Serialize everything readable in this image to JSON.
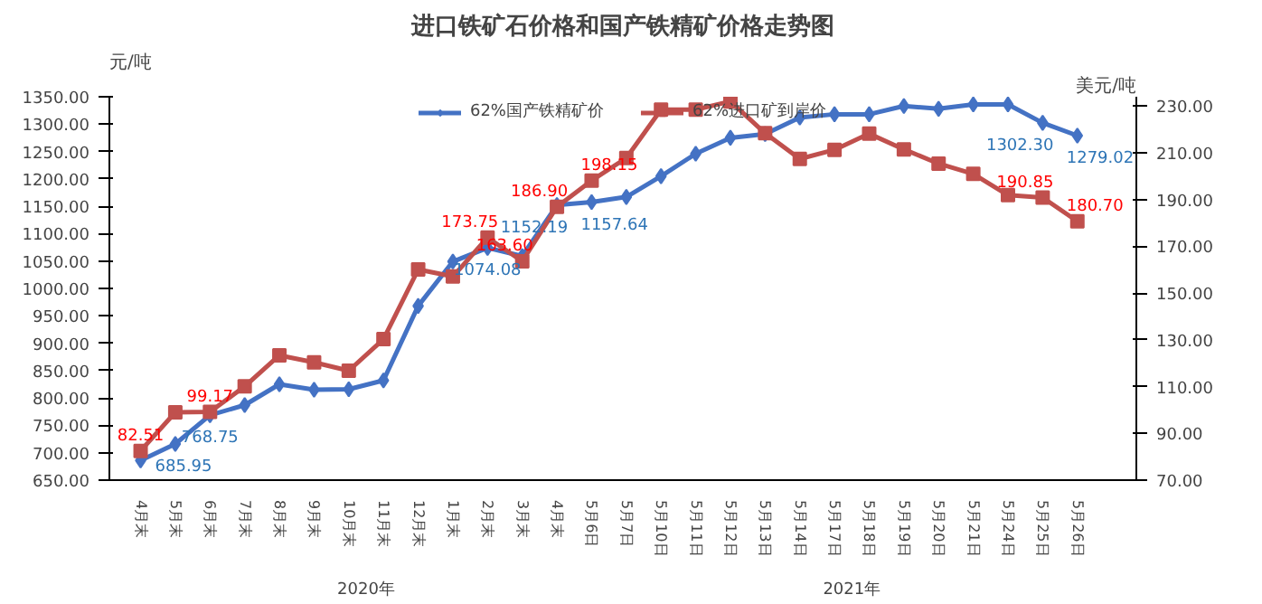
{
  "chart_data": {
    "type": "line",
    "title": "进口铁矿石价格和国产铁精矿价格走势图",
    "ylabel": "元/吨",
    "y2label": "美元/吨",
    "categories": [
      "4月末",
      "5月末",
      "6月末",
      "7月末",
      "8月末",
      "9月末",
      "10月末",
      "11月末",
      "12月末",
      "1月末",
      "2月末",
      "3月末",
      "4月末",
      "5月6日",
      "5月7日",
      "5月10日",
      "5月11日",
      "5月12日",
      "5月13日",
      "5月14日",
      "5月17日",
      "5月18日",
      "5月19日",
      "5月20日",
      "5月21日",
      "5月24日",
      "5月25日",
      "5月26日"
    ],
    "series": [
      {
        "name": "62%国产铁精矿价",
        "color": "#4472c4",
        "marker": "diamond",
        "values": [
          685.95,
          716,
          768.75,
          787,
          825,
          815,
          816,
          832,
          968,
          1049,
          1074.08,
          1059,
          1152.19,
          1157.64,
          1167,
          1205,
          1246,
          1275,
          1282,
          1312,
          1318,
          1318,
          1333,
          1328,
          1336,
          1336,
          1302.3,
          1279.02
        ],
        "value_labels": [
          "685.95",
          null,
          "768.75",
          null,
          null,
          null,
          null,
          null,
          null,
          null,
          "1074.08",
          null,
          "1152.19",
          "1157.64",
          null,
          null,
          null,
          null,
          null,
          null,
          null,
          null,
          null,
          null,
          null,
          null,
          "1302.30",
          "1279.02"
        ]
      },
      {
        "name": "62%进口矿到岸价",
        "color": "#c0504d",
        "marker": "square",
        "axis": "y2",
        "values": [
          82.51,
          99.0,
          99.17,
          110.1,
          123.4,
          120.4,
          116.8,
          130.3,
          160.1,
          157.1,
          173.75,
          163.6,
          186.9,
          198.15,
          207.8,
          228.5,
          228.5,
          232,
          218.4,
          207.4,
          211.3,
          218.2,
          211.5,
          205.4,
          201,
          191.9,
          190.85,
          180.7
        ],
        "value_labels": [
          "82.51",
          null,
          "99.17",
          null,
          null,
          null,
          null,
          null,
          null,
          null,
          "173.75",
          "163.60",
          "186.90",
          "198.15",
          null,
          null,
          null,
          null,
          null,
          null,
          null,
          null,
          null,
          null,
          null,
          null,
          "190.85",
          "180.70"
        ]
      }
    ],
    "annotations": [
      "2020年",
      "2021年"
    ],
    "ylim": [
      650,
      1350
    ],
    "yticks": [
      {
        "value": 650,
        "label": "650.00"
      },
      {
        "value": 700,
        "label": "700.00"
      },
      {
        "value": 750,
        "label": "750.00"
      },
      {
        "value": 800,
        "label": "800.00"
      },
      {
        "value": 850,
        "label": "850.00"
      },
      {
        "value": 900,
        "label": "900.00"
      },
      {
        "value": 950,
        "label": "950.00"
      },
      {
        "value": 1000,
        "label": "1000.00"
      },
      {
        "value": 1050,
        "label": "1050.00"
      },
      {
        "value": 1100,
        "label": "1100.00"
      },
      {
        "value": 1150,
        "label": "1150.00"
      },
      {
        "value": 1200,
        "label": "1200.00"
      },
      {
        "value": 1250,
        "label": "1250.00"
      },
      {
        "value": 1300,
        "label": "1300.00"
      },
      {
        "value": 1350,
        "label": "1350.00"
      }
    ],
    "y2lim": [
      70,
      234
    ],
    "y2ticks": [
      {
        "value": 70,
        "label": "70.00"
      },
      {
        "value": 90,
        "label": "90.00"
      },
      {
        "value": 110,
        "label": "110.00"
      },
      {
        "value": 130,
        "label": "130.00"
      },
      {
        "value": 150,
        "label": "150.00"
      },
      {
        "value": 170,
        "label": "170.00"
      },
      {
        "value": 190,
        "label": "190.00"
      },
      {
        "value": 210,
        "label": "210.00"
      },
      {
        "value": 230,
        "label": "230.00"
      }
    ],
    "legend": "top",
    "grid": false,
    "line_style": "solid"
  }
}
